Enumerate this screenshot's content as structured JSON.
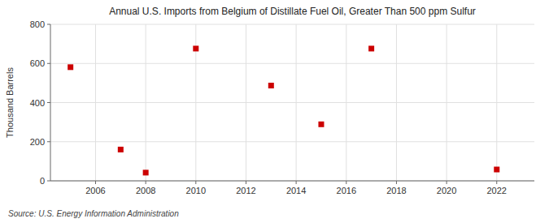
{
  "chart_data": {
    "type": "scatter",
    "title": "Annual U.S. Imports from Belgium of Distillate Fuel Oil, Greater Than 500 ppm Sulfur",
    "ylabel": "Thousand Barrels",
    "source": "Source: U.S. Energy Information Administration",
    "x": [
      2005,
      2007,
      2008,
      2010,
      2013,
      2015,
      2017,
      2022
    ],
    "values": [
      581,
      160,
      42,
      676,
      487,
      289,
      676,
      58
    ],
    "color": "#cc0000",
    "marker": "square",
    "xlim": [
      2004.2,
      2023.5
    ],
    "ylim": [
      0,
      800
    ],
    "xticks": [
      2006,
      2008,
      2010,
      2012,
      2014,
      2016,
      2018,
      2020,
      2022
    ],
    "yticks": [
      0,
      200,
      400,
      600,
      800
    ],
    "grid": true
  }
}
